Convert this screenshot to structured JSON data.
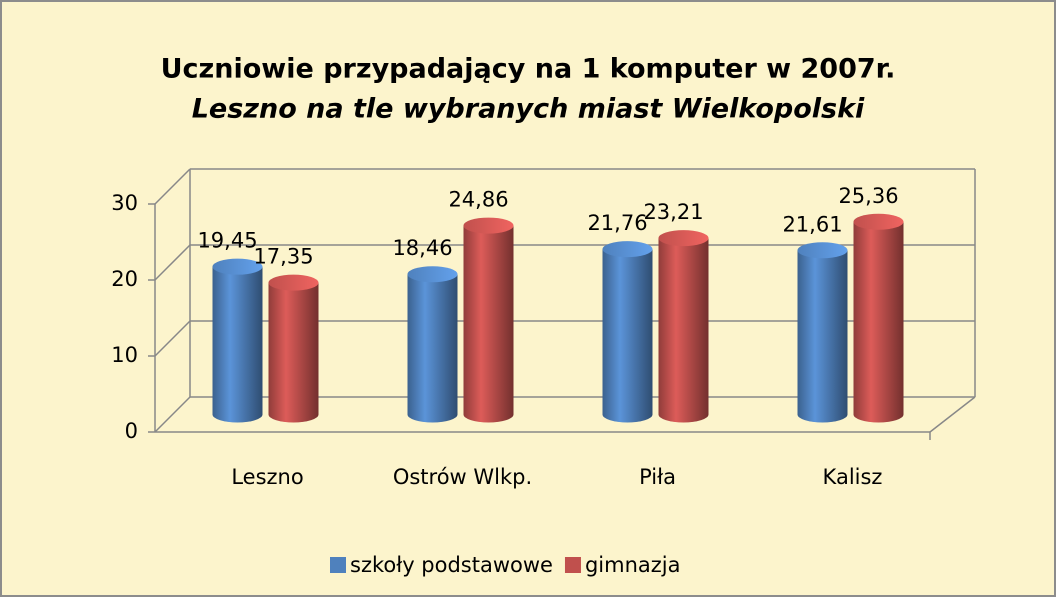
{
  "chart_data": {
    "type": "bar3d",
    "title": "Uczniowie przypadający na 1 komputer w 2007r.",
    "subtitle": "Leszno na tle wybranych miast Wielkopolski",
    "categories": [
      "Leszno",
      "Ostrów Wlkp.",
      "Piła",
      "Kalisz"
    ],
    "series": [
      {
        "name": "szkoły podstawowe",
        "color": "#4f81bd",
        "values": [
          19.45,
          18.46,
          21.76,
          21.61
        ],
        "value_labels": [
          "19,45",
          "18,46",
          "21,76",
          "21,61"
        ]
      },
      {
        "name": "gimnazja",
        "color": "#c0504d",
        "values": [
          17.35,
          24.86,
          23.21,
          25.36
        ],
        "value_labels": [
          "17,35",
          "24,86",
          "23,21",
          "25,36"
        ]
      }
    ],
    "ylim": [
      0,
      30
    ],
    "yticks": [
      0,
      10,
      20,
      30
    ],
    "grid": true,
    "legend": "bottom"
  }
}
